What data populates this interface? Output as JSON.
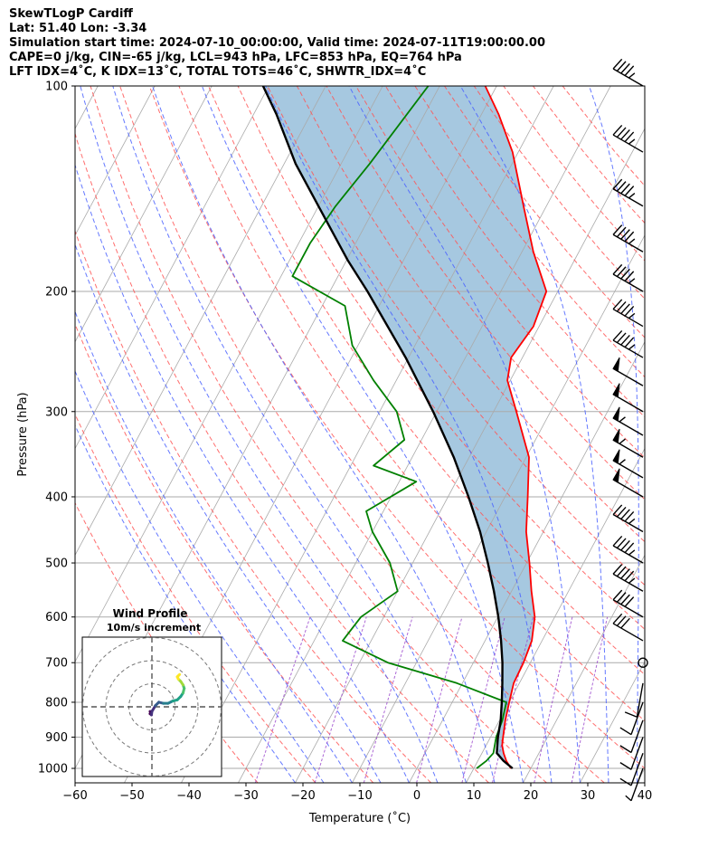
{
  "header": {
    "lines": [
      "SkewTLogP Cardiff",
      "Lat: 51.40   Lon: -3.34",
      "Simulation start time: 2024-07-10_00:00:00, Valid time: 2024-07-11T19:00:00.00",
      "CAPE=0 j/kg, CIN=-65 j/kg, LCL=943 hPa, LFC=853 hPa, EQ=764 hPa",
      "LFT IDX=4˚C, K IDX=13˚C, TOTAL TOTS=46˚C, SHWTR_IDX=4˚C"
    ]
  },
  "chart_data": {
    "type": "line",
    "subtype": "skew-T log-P diagram",
    "xlabel": "Temperature (˚C)",
    "ylabel": "Pressure (hPa)",
    "x_ticks": [
      -60,
      -50,
      -40,
      -30,
      -20,
      -10,
      0,
      10,
      20,
      30,
      40
    ],
    "y_ticks": [
      100,
      200,
      300,
      400,
      500,
      600,
      700,
      800,
      900,
      1000
    ],
    "xlim": [
      -60,
      40
    ],
    "ylim": [
      1050,
      100
    ],
    "y_scale": "log",
    "skew_deg_per_decade": 64,
    "grid": true,
    "series": [
      {
        "role": "temperature",
        "color": "#ff0000",
        "points": [
          [
            1000,
            16.5
          ],
          [
            975,
            15.0
          ],
          [
            950,
            13.8
          ],
          [
            925,
            12.8
          ],
          [
            900,
            12.2
          ],
          [
            850,
            11.0
          ],
          [
            800,
            10.0
          ],
          [
            750,
            9.0
          ],
          [
            700,
            8.8
          ],
          [
            650,
            8.2
          ],
          [
            600,
            6.5
          ],
          [
            550,
            3.5
          ],
          [
            500,
            0.5
          ],
          [
            450,
            -3.0
          ],
          [
            400,
            -6.0
          ],
          [
            350,
            -9.5
          ],
          [
            300,
            -16.0
          ],
          [
            270,
            -20.5
          ],
          [
            250,
            -22.0
          ],
          [
            225,
            -21.0
          ],
          [
            200,
            -22.0
          ],
          [
            175,
            -28.0
          ],
          [
            150,
            -34.0
          ],
          [
            125,
            -41.0
          ],
          [
            110,
            -47.0
          ],
          [
            100,
            -52.0
          ]
        ]
      },
      {
        "role": "dewpoint",
        "color": "#008000",
        "points": [
          [
            1000,
            10.5
          ],
          [
            975,
            11.5
          ],
          [
            950,
            12.0
          ],
          [
            900,
            11.0
          ],
          [
            850,
            10.5
          ],
          [
            800,
            9.5
          ],
          [
            750,
            -1.0
          ],
          [
            700,
            -15.0
          ],
          [
            650,
            -25.0
          ],
          [
            600,
            -24.0
          ],
          [
            550,
            -20.0
          ],
          [
            500,
            -24.0
          ],
          [
            450,
            -30.0
          ],
          [
            420,
            -33.0
          ],
          [
            380,
            -27.0
          ],
          [
            360,
            -36.0
          ],
          [
            330,
            -33.0
          ],
          [
            300,
            -37.0
          ],
          [
            270,
            -44.0
          ],
          [
            240,
            -51.0
          ],
          [
            210,
            -56.0
          ],
          [
            190,
            -68.0
          ],
          [
            170,
            -68.0
          ],
          [
            150,
            -67.0
          ],
          [
            130,
            -65.0
          ],
          [
            100,
            -62.0
          ]
        ]
      },
      {
        "role": "parcel",
        "color": "#000000",
        "points": [
          [
            1000,
            16.8
          ],
          [
            975,
            14.5
          ],
          [
            950,
            12.6
          ],
          [
            900,
            11.3
          ],
          [
            850,
            10.2
          ],
          [
            800,
            8.7
          ],
          [
            750,
            7.0
          ],
          [
            700,
            5.1
          ],
          [
            650,
            2.8
          ],
          [
            600,
            0.1
          ],
          [
            550,
            -3.1
          ],
          [
            500,
            -6.8
          ],
          [
            450,
            -11.1
          ],
          [
            400,
            -16.4
          ],
          [
            350,
            -22.7
          ],
          [
            300,
            -30.6
          ],
          [
            250,
            -40.5
          ],
          [
            200,
            -53.4
          ],
          [
            180,
            -59.8
          ],
          [
            150,
            -70.0
          ],
          [
            130,
            -78.0
          ],
          [
            110,
            -86.0
          ],
          [
            100,
            -91.0
          ]
        ]
      }
    ],
    "wind_barbs": [
      {
        "p": 100,
        "speed": 45,
        "dir": 300
      },
      {
        "p": 125,
        "speed": 45,
        "dir": 300
      },
      {
        "p": 150,
        "speed": 45,
        "dir": 300
      },
      {
        "p": 175,
        "speed": 45,
        "dir": 300
      },
      {
        "p": 200,
        "speed": 45,
        "dir": 300
      },
      {
        "p": 225,
        "speed": 45,
        "dir": 300
      },
      {
        "p": 250,
        "speed": 45,
        "dir": 300
      },
      {
        "p": 275,
        "speed": 50,
        "dir": 300
      },
      {
        "p": 300,
        "speed": 50,
        "dir": 300
      },
      {
        "p": 325,
        "speed": 55,
        "dir": 300
      },
      {
        "p": 350,
        "speed": 55,
        "dir": 300
      },
      {
        "p": 375,
        "speed": 55,
        "dir": 300
      },
      {
        "p": 400,
        "speed": 50,
        "dir": 300
      },
      {
        "p": 450,
        "speed": 45,
        "dir": 300
      },
      {
        "p": 500,
        "speed": 45,
        "dir": 300
      },
      {
        "p": 550,
        "speed": 45,
        "dir": 300
      },
      {
        "p": 600,
        "speed": 40,
        "dir": 300
      },
      {
        "p": 650,
        "speed": 30,
        "dir": 300
      },
      {
        "p": 700,
        "speed": 0,
        "dir": 0
      },
      {
        "p": 750,
        "speed": 10,
        "dir": 190
      },
      {
        "p": 800,
        "speed": 10,
        "dir": 200
      },
      {
        "p": 850,
        "speed": 10,
        "dir": 200
      },
      {
        "p": 900,
        "speed": 10,
        "dir": 200
      },
      {
        "p": 950,
        "speed": 10,
        "dir": 200
      },
      {
        "p": 1000,
        "speed": 5,
        "dir": 200
      }
    ],
    "hodograph": {
      "title": "Wind Profile",
      "subtitle": "10m/s increment",
      "ring_step": 10,
      "rings": 3,
      "points": [
        [
          -0.8,
          -2.0
        ],
        [
          -0.5,
          -2.5
        ],
        [
          -0.8,
          -3.0
        ],
        [
          -0.2,
          -3.5
        ],
        [
          0.0,
          -2.0
        ],
        [
          1.5,
          0.5
        ],
        [
          3.0,
          2.0
        ],
        [
          5.0,
          1.5
        ],
        [
          7.0,
          1.5
        ],
        [
          9.0,
          2.5
        ],
        [
          11.0,
          3.0
        ],
        [
          12.5,
          4.5
        ],
        [
          13.5,
          6.0
        ],
        [
          14.0,
          8.0
        ],
        [
          13.5,
          9.5
        ],
        [
          12.5,
          11.0
        ],
        [
          11.5,
          12.0
        ],
        [
          11.0,
          13.0
        ],
        [
          12.0,
          14.0
        ]
      ],
      "colors": [
        "#440154",
        "#46327e",
        "#365c8d",
        "#277f8e",
        "#1fa187",
        "#4ac16d",
        "#a0da39",
        "#fde725"
      ]
    },
    "colors": {
      "cape_fill": "#a6c8e0",
      "dry_adiabat": "#ff5555",
      "moist_adiabat": "#4a61ff",
      "mixing_ratio": "#9944cc",
      "isotherm": "#aaaaaa"
    }
  }
}
